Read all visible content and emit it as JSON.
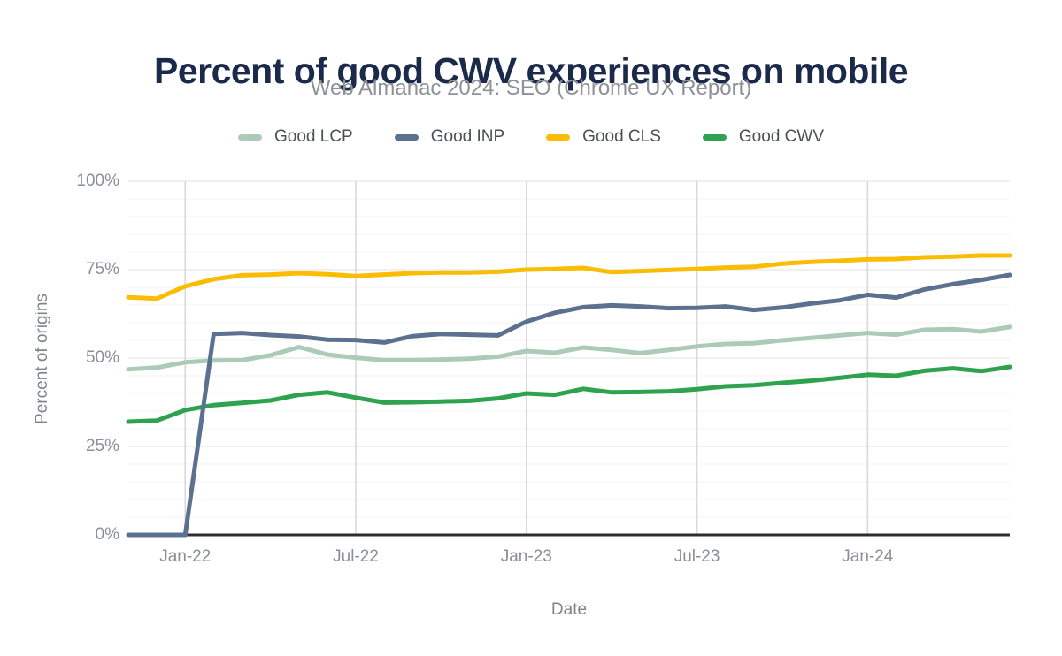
{
  "header": {
    "title": "Percent of good CWV experiences on mobile",
    "subtitle": "Web Almanac 2024: SEO (Chrome UX Report)"
  },
  "legend": {
    "position": "top",
    "items": [
      {
        "label": "Good LCP",
        "color": "#ABCBB8"
      },
      {
        "label": "Good INP",
        "color": "#5C7090"
      },
      {
        "label": "Good CLS",
        "color": "#FBBC04"
      },
      {
        "label": "Good CWV",
        "color": "#2EA24E"
      }
    ]
  },
  "axes": {
    "x": {
      "title": "Date",
      "ticks": [
        "Jan-22",
        "Jul-22",
        "Jan-23",
        "Jul-23",
        "Jan-24"
      ]
    },
    "y": {
      "title": "Percent of origins",
      "ticks": [
        {
          "label": "0%",
          "value": 0
        },
        {
          "label": "25%",
          "value": 25
        },
        {
          "label": "50%",
          "value": 50
        },
        {
          "label": "75%",
          "value": 75
        },
        {
          "label": "100%",
          "value": 100
        }
      ]
    }
  },
  "chart_data": {
    "type": "line",
    "title": "Percent of good CWV experiences on mobile",
    "subtitle": "Web Almanac 2024: SEO (Chrome UX Report)",
    "xlabel": "Date",
    "ylabel": "Percent of origins",
    "ylim": [
      0,
      100
    ],
    "grid": {
      "horizontal_minor_step": 5,
      "horizontal_major_step": 25,
      "vertical_at": [
        "Jan-22",
        "Jul-22",
        "Jan-23",
        "Jul-23",
        "Jan-24"
      ]
    },
    "legend_position": "top",
    "x": [
      "Nov-21",
      "Dec-21",
      "Jan-22",
      "Feb-22",
      "Mar-22",
      "Apr-22",
      "May-22",
      "Jun-22",
      "Jul-22",
      "Aug-22",
      "Sep-22",
      "Oct-22",
      "Nov-22",
      "Dec-22",
      "Jan-23",
      "Feb-23",
      "Mar-23",
      "Apr-23",
      "May-23",
      "Jun-23",
      "Jul-23",
      "Aug-23",
      "Sep-23",
      "Oct-23",
      "Nov-23",
      "Dec-23",
      "Jan-24",
      "Feb-24",
      "Mar-24",
      "Apr-24",
      "May-24",
      "Jun-24"
    ],
    "series": [
      {
        "name": "Good LCP",
        "color": "#ABCBB8",
        "values": [
          46.8,
          47.3,
          48.8,
          49.3,
          49.4,
          50.8,
          53.1,
          51.0,
          50.1,
          49.4,
          49.4,
          49.6,
          49.8,
          50.4,
          52.0,
          51.5,
          53.0,
          52.3,
          51.4,
          52.3,
          53.3,
          54.0,
          54.2,
          55.0,
          55.7,
          56.4,
          57.1,
          56.6,
          58.0,
          58.2,
          57.5,
          58.8
        ]
      },
      {
        "name": "Good INP",
        "color": "#5C7090",
        "values": [
          0,
          0,
          0,
          56.8,
          57.1,
          56.5,
          56.1,
          55.2,
          55.1,
          54.4,
          56.2,
          56.8,
          56.6,
          56.4,
          60.3,
          62.8,
          64.4,
          64.9,
          64.6,
          64.1,
          64.2,
          64.6,
          63.6,
          64.3,
          65.4,
          66.3,
          67.9,
          67.1,
          69.4,
          70.9,
          72.1,
          73.5
        ]
      },
      {
        "name": "Good CLS",
        "color": "#FBBC04",
        "values": [
          67.2,
          66.8,
          70.3,
          72.3,
          73.4,
          73.6,
          74.0,
          73.7,
          73.2,
          73.6,
          74.0,
          74.2,
          74.2,
          74.4,
          75.0,
          75.2,
          75.5,
          74.3,
          74.6,
          74.9,
          75.2,
          75.6,
          75.8,
          76.7,
          77.2,
          77.5,
          77.9,
          78.0,
          78.5,
          78.7,
          79.0,
          79.0
        ]
      },
      {
        "name": "Good CWV",
        "color": "#2EA24E",
        "values": [
          32.0,
          32.3,
          35.3,
          36.7,
          37.3,
          38.0,
          39.6,
          40.3,
          38.8,
          37.4,
          37.5,
          37.7,
          37.9,
          38.6,
          40.0,
          39.6,
          41.3,
          40.3,
          40.4,
          40.6,
          41.2,
          42.0,
          42.3,
          43.0,
          43.6,
          44.4,
          45.3,
          45.0,
          46.4,
          47.1,
          46.3,
          47.5
        ]
      }
    ]
  },
  "style": {
    "grid_minor_color": "#f3f3f3",
    "grid_major_color": "#e2e2e2",
    "grid_vertical_color": "#d7d7d7",
    "axis_line_color": "#2d2e30"
  }
}
